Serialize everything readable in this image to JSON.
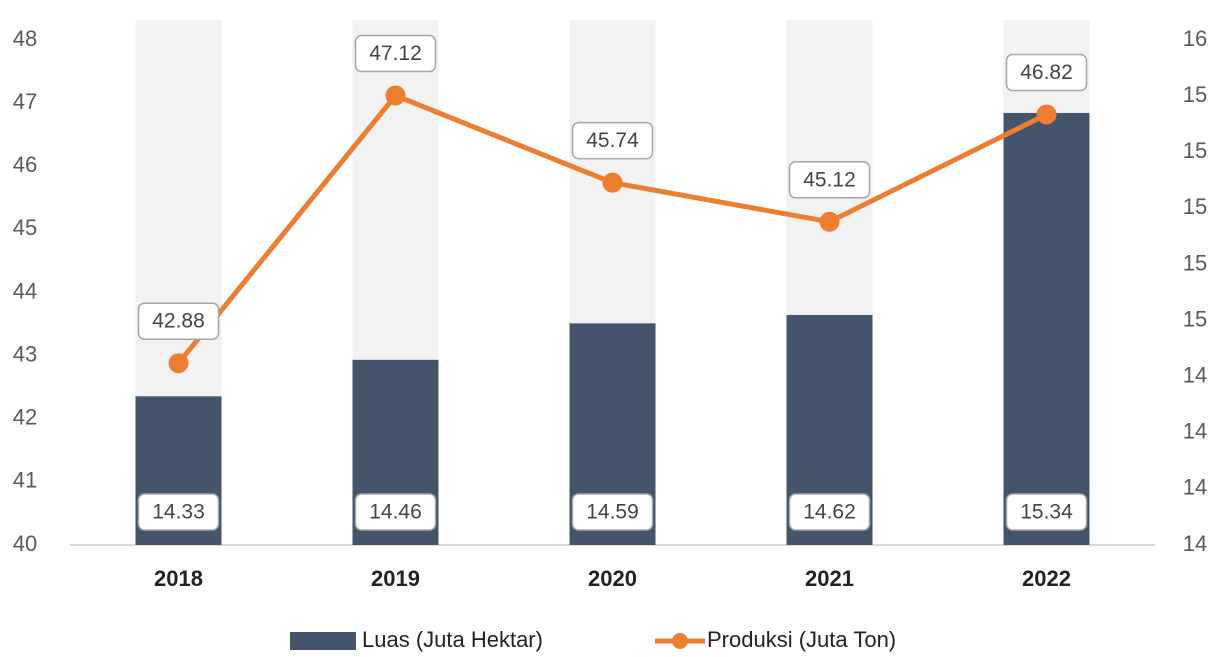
{
  "chart_data": {
    "type": "bar",
    "categories": [
      "2018",
      "2019",
      "2020",
      "2021",
      "2022"
    ],
    "series": [
      {
        "name": "Luas (Juta Hektar)",
        "type": "bar",
        "axis": "y2",
        "color": "#44546a",
        "values": [
          14.33,
          14.46,
          14.59,
          14.62,
          15.34
        ]
      },
      {
        "name": "Produksi (Juta Ton)",
        "type": "line",
        "color": "#ed7d31",
        "values": [
          42.88,
          47.12,
          45.74,
          45.12,
          46.82
        ]
      }
    ],
    "background_bar_color": "#f2f2f2",
    "ylim": [
      40,
      48
    ],
    "yticks": [
      40,
      41,
      42,
      43,
      44,
      45,
      46,
      47,
      48
    ],
    "y2lim": [
      13.8,
      15.6
    ],
    "y2ticks": [
      {
        "value": 13.8,
        "label": "14"
      },
      {
        "value": 14.0,
        "label": "14"
      },
      {
        "value": 14.2,
        "label": "14"
      },
      {
        "value": 14.4,
        "label": "14"
      },
      {
        "value": 14.6,
        "label": "15"
      },
      {
        "value": 14.8,
        "label": "15"
      },
      {
        "value": 15.0,
        "label": "15"
      },
      {
        "value": 15.2,
        "label": "15"
      },
      {
        "value": 15.4,
        "label": "15"
      },
      {
        "value": 15.6,
        "label": "16"
      }
    ]
  }
}
